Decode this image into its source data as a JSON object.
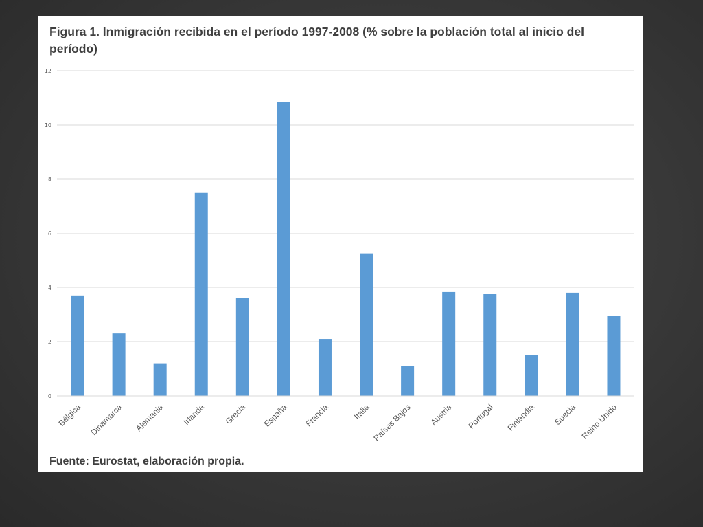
{
  "chart_data": {
    "type": "bar",
    "title": "Figura 1. Inmigración recibida en el período 1997-2008 (% sobre la población total al inicio del período)",
    "source": "Fuente: Eurostat, elaboración propia.",
    "categories": [
      "Bélgica",
      "Dinamarca",
      "Alemania",
      "Irlanda",
      "Grecia",
      "España",
      "Francia",
      "Italia",
      "Países Bajos",
      "Austria",
      "Portugal",
      "Finlandia",
      "Suecia",
      "Reino Unido"
    ],
    "series": [
      {
        "values": [
          3.7,
          2.3,
          1.2,
          7.5,
          3.6,
          10.85,
          2.1,
          5.25,
          1.1,
          3.85,
          3.75,
          1.5,
          3.8,
          2.95
        ]
      }
    ],
    "ylim": [
      0,
      12
    ],
    "yticks": [
      0,
      2,
      4,
      6,
      8,
      10,
      12
    ],
    "xlabel": "",
    "ylabel": "",
    "grid": true,
    "bar_color": "#5b9bd5",
    "grid_color": "#d9d9d9"
  }
}
